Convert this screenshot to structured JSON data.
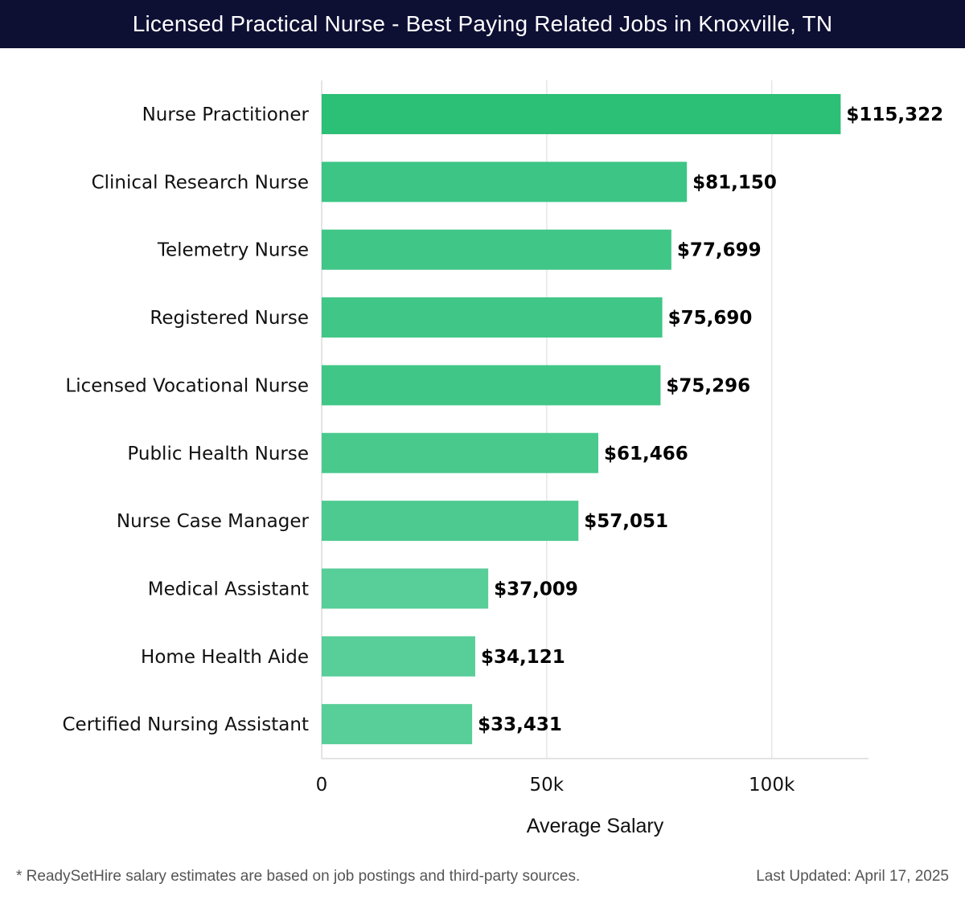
{
  "header": {
    "title": "Licensed Practical Nurse - Best Paying Related Jobs in Knoxville, TN"
  },
  "chart_data": {
    "type": "bar",
    "orientation": "horizontal",
    "title": "Licensed Practical Nurse - Best Paying Related Jobs in Knoxville, TN",
    "categories": [
      "Nurse Practitioner",
      "Clinical Research Nurse",
      "Telemetry Nurse",
      "Registered Nurse",
      "Licensed Vocational Nurse",
      "Public Health Nurse",
      "Nurse Case Manager",
      "Medical Assistant",
      "Home Health Aide",
      "Certified Nursing Assistant"
    ],
    "values": [
      115322,
      81150,
      77699,
      75690,
      75296,
      61466,
      57051,
      37009,
      34121,
      33431
    ],
    "value_labels": [
      "$115,322",
      "$81,150",
      "$77,699",
      "$75,690",
      "$75,296",
      "$61,466",
      "$57,051",
      "$37,009",
      "$34,121",
      "$33,431"
    ],
    "xlabel": "Average Salary",
    "ylabel": "",
    "xlim": [
      0,
      121500
    ],
    "xticks": [
      0,
      50000,
      100000
    ],
    "xtick_labels": [
      "0",
      "50k",
      "100k"
    ],
    "grid": true,
    "bar_colors": [
      "#2cbf76",
      "#3cc585",
      "#40c687",
      "#40c687",
      "#40c687",
      "#4ac98d",
      "#4dca90",
      "#58ce99",
      "#58ce99",
      "#58ce99"
    ]
  },
  "footer": {
    "note": "* ReadySetHire salary estimates are based on job postings and third-party sources.",
    "updated": "Last Updated: April 17, 2025"
  }
}
